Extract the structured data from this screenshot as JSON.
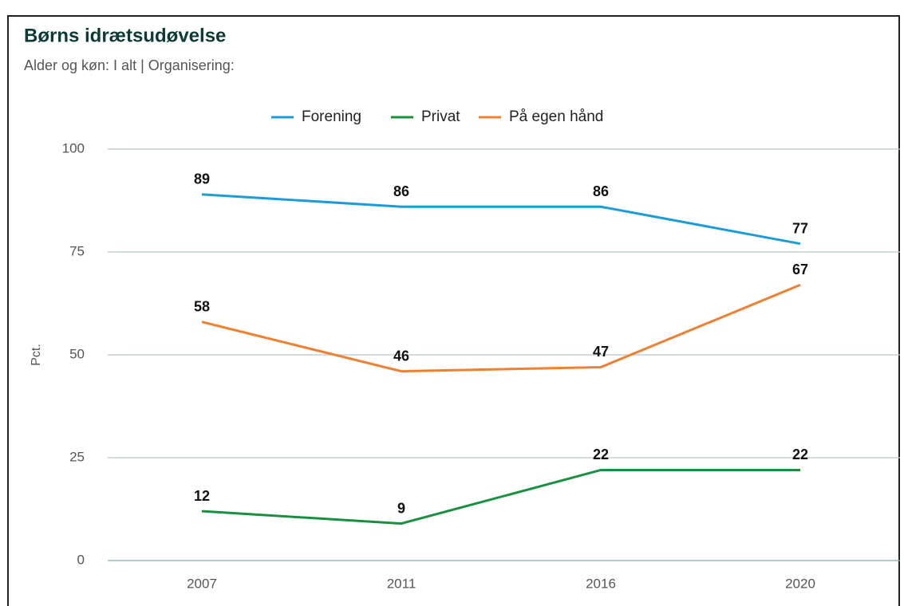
{
  "chart_data": {
    "type": "line",
    "title": "Børns idrætsudøvelse",
    "subtitle": "Alder og køn: I alt | Organisering:",
    "ylabel": "Pct.",
    "categories": [
      "2007",
      "2011",
      "2016",
      "2020"
    ],
    "series": [
      {
        "name": "Forening",
        "color": "#1a9cd8",
        "values": [
          89,
          86,
          86,
          77
        ]
      },
      {
        "name": "Privat",
        "color": "#17913f",
        "values": [
          12,
          9,
          22,
          22
        ]
      },
      {
        "name": "På egen hånd",
        "color": "#f08030",
        "values": [
          58,
          46,
          47,
          67
        ]
      }
    ],
    "ylim": [
      0,
      100
    ],
    "yticks": [
      0,
      25,
      50,
      75,
      100
    ],
    "grid": true,
    "legend": "top"
  }
}
